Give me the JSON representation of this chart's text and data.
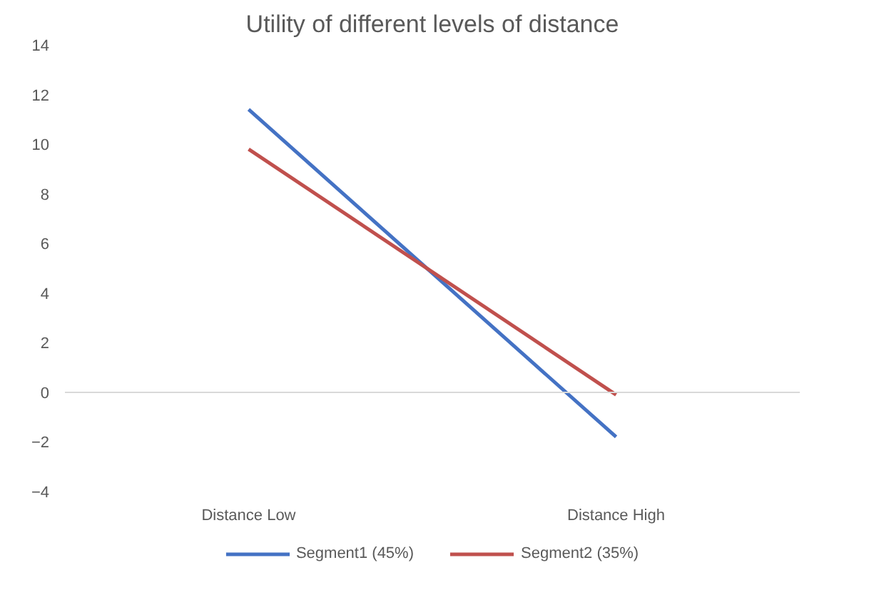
{
  "chart_data": {
    "type": "line",
    "title": "Utility of different levels of distance",
    "categories": [
      "Distance Low",
      "Distance High"
    ],
    "series": [
      {
        "name": "Segment1 (45%)",
        "color": "#4472c4",
        "values": [
          11.4,
          -1.8
        ]
      },
      {
        "name": "Segment2 (35%)",
        "color": "#c0504d",
        "values": [
          9.8,
          -0.1
        ]
      }
    ],
    "ref_lines": [
      {
        "axis": "y",
        "value": 0,
        "color": "#d9d9d9"
      }
    ],
    "ylim": [
      -4,
      14
    ],
    "yticks": [
      -4,
      -2,
      0,
      2,
      4,
      6,
      8,
      10,
      12,
      14
    ],
    "grid": false,
    "legend": "bottom",
    "marker": "none",
    "line_style": "solid"
  }
}
